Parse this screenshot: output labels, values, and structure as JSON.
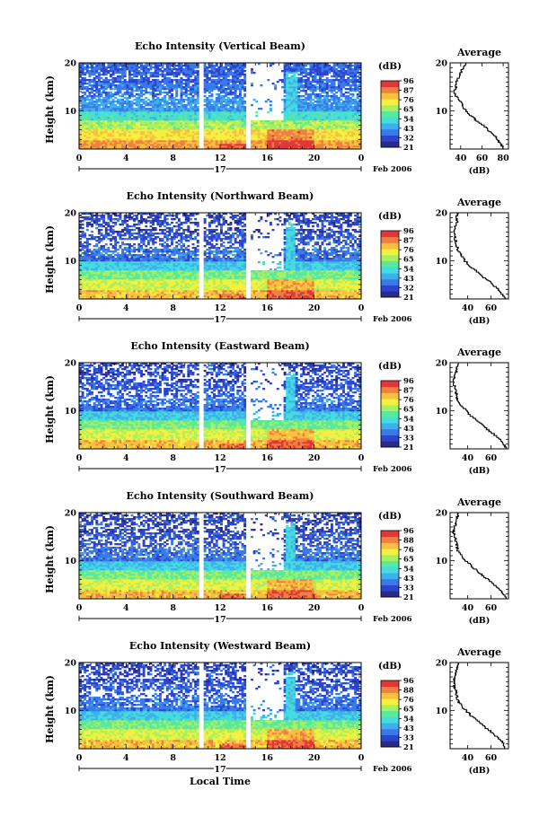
{
  "colorbar": {
    "unit": "(dB)",
    "colors": [
      "#2a2a88",
      "#2d44cc",
      "#3a7ae8",
      "#3fb0ee",
      "#44dcdc",
      "#58e8a0",
      "#a8f060",
      "#f4f040",
      "#f8c040",
      "#f08040",
      "#e03838"
    ],
    "tick_sets": [
      [
        "96",
        "87",
        "76",
        "65",
        "54",
        "43",
        "32",
        "21"
      ],
      [
        "96",
        "87",
        "76",
        "65",
        "54",
        "43",
        "32",
        "21"
      ],
      [
        "96",
        "87",
        "76",
        "65",
        "54",
        "43",
        "33",
        "21"
      ],
      [
        "96",
        "88",
        "76",
        "65",
        "54",
        "43",
        "33",
        "21"
      ],
      [
        "96",
        "88",
        "76",
        "65",
        "54",
        "43",
        "33",
        "21"
      ]
    ]
  },
  "chart_data": [
    {
      "type": "heatmap",
      "title": "Echo Intensity (Vertical Beam)",
      "ylabel": "Height (km)",
      "x_ticks": [
        "0",
        "4",
        "8",
        "12",
        "16",
        "20",
        "0"
      ],
      "x_range": [
        0,
        24
      ],
      "y_ticks": [
        "10",
        "20"
      ],
      "y_range": [
        2,
        20
      ],
      "day_label": "17",
      "date_label": "Feb 2006",
      "gaps": [
        [
          10.2,
          10.5
        ],
        [
          14.3,
          14.7
        ]
      ],
      "burst": [
        17.6,
        18.5
      ],
      "profile": {
        "title": "Average",
        "x_ticks": [
          "40",
          "60",
          "80"
        ],
        "x_range": [
          30,
          85
        ],
        "xlabel": "(dB)",
        "y_ticks": [
          "10",
          "20"
        ],
        "heights": [
          2,
          3,
          4,
          5,
          6,
          7,
          8,
          9,
          10,
          11,
          12,
          13,
          14,
          15,
          16,
          17,
          18,
          19,
          20
        ],
        "values": [
          80,
          78,
          75,
          72,
          66,
          62,
          55,
          50,
          45,
          42,
          40,
          36,
          34,
          36,
          35,
          38,
          40,
          42,
          45
        ]
      }
    },
    {
      "type": "heatmap",
      "title": "Echo Intensity (Northward Beam)",
      "ylabel": "Height (km)",
      "x_ticks": [
        "0",
        "4",
        "8",
        "12",
        "16",
        "20",
        "0"
      ],
      "x_range": [
        0,
        24
      ],
      "y_ticks": [
        "10",
        "20"
      ],
      "y_range": [
        2,
        20
      ],
      "day_label": "17",
      "date_label": "Feb 2006",
      "gaps": [
        [
          10.2,
          10.5
        ],
        [
          14.3,
          14.7
        ]
      ],
      "burst": [
        17.6,
        18.3
      ],
      "profile": {
        "title": "Average",
        "x_ticks": [
          "40",
          "60"
        ],
        "x_range": [
          25,
          75
        ],
        "xlabel": "(dB)",
        "y_ticks": [
          "10",
          "20"
        ],
        "heights": [
          2,
          3,
          4,
          5,
          6,
          7,
          8,
          9,
          10,
          11,
          12,
          13,
          14,
          15,
          16,
          17,
          18,
          19,
          20
        ],
        "values": [
          72,
          70,
          67,
          62,
          57,
          52,
          47,
          42,
          38,
          35,
          32,
          31,
          30,
          29,
          28,
          29,
          31,
          30,
          32
        ]
      }
    },
    {
      "type": "heatmap",
      "title": "Echo Intensity (Eastward Beam)",
      "ylabel": "Height (km)",
      "x_ticks": [
        "0",
        "4",
        "8",
        "12",
        "16",
        "20",
        "0"
      ],
      "x_range": [
        0,
        24
      ],
      "y_ticks": [
        "10",
        "20"
      ],
      "y_range": [
        2,
        20
      ],
      "day_label": "17",
      "date_label": "Feb 2006",
      "gaps": [
        [
          10.2,
          10.5
        ],
        [
          14.3,
          14.7
        ]
      ],
      "burst": [
        17.6,
        18.3
      ],
      "profile": {
        "title": "Average",
        "x_ticks": [
          "40",
          "60"
        ],
        "x_range": [
          25,
          75
        ],
        "xlabel": "(dB)",
        "y_ticks": [
          "10",
          "20"
        ],
        "heights": [
          2,
          3,
          4,
          5,
          6,
          7,
          8,
          9,
          10,
          11,
          12,
          13,
          14,
          15,
          16,
          17,
          18,
          19,
          20
        ],
        "values": [
          73,
          71,
          68,
          63,
          58,
          53,
          48,
          43,
          39,
          35,
          32,
          31,
          30,
          29,
          28,
          29,
          30,
          31,
          32
        ]
      }
    },
    {
      "type": "heatmap",
      "title": "Echo Intensity (Southward Beam)",
      "ylabel": "Height (km)",
      "x_ticks": [
        "0",
        "4",
        "8",
        "12",
        "16",
        "20",
        "0"
      ],
      "x_range": [
        0,
        24
      ],
      "y_ticks": [
        "10",
        "20"
      ],
      "y_range": [
        2,
        20
      ],
      "day_label": "17",
      "date_label": "Feb 2006",
      "gaps": [
        [
          10.2,
          10.5
        ],
        [
          14.3,
          14.7
        ]
      ],
      "burst": [
        17.6,
        18.3
      ],
      "profile": {
        "title": "Average",
        "x_ticks": [
          "40",
          "60"
        ],
        "x_range": [
          25,
          75
        ],
        "xlabel": "(dB)",
        "y_ticks": [
          "10",
          "20"
        ],
        "heights": [
          2,
          3,
          4,
          5,
          6,
          7,
          8,
          9,
          10,
          11,
          12,
          13,
          14,
          15,
          16,
          17,
          18,
          19,
          20
        ],
        "values": [
          73,
          71,
          68,
          63,
          58,
          53,
          48,
          43,
          39,
          35,
          32,
          31,
          30,
          29,
          28,
          29,
          30,
          31,
          32
        ]
      }
    },
    {
      "type": "heatmap",
      "title": "Echo Intensity (Westward Beam)",
      "ylabel": "Height (km)",
      "xlabel": "Local Time",
      "x_ticks": [
        "0",
        "4",
        "8",
        "12",
        "16",
        "20",
        "0"
      ],
      "x_range": [
        0,
        24
      ],
      "y_ticks": [
        "10",
        "20"
      ],
      "y_range": [
        2,
        20
      ],
      "day_label": "17",
      "date_label": "Feb 2006",
      "gaps": [
        [
          10.2,
          10.5
        ],
        [
          14.3,
          14.7
        ]
      ],
      "burst": [
        17.6,
        18.3
      ],
      "profile": {
        "title": "Average",
        "x_ticks": [
          "40",
          "60"
        ],
        "x_range": [
          25,
          75
        ],
        "xlabel": "(dB)",
        "y_ticks": [
          "10",
          "20"
        ],
        "heights": [
          2,
          3,
          4,
          5,
          6,
          7,
          8,
          9,
          10,
          11,
          12,
          13,
          14,
          15,
          16,
          17,
          18,
          19,
          20
        ],
        "values": [
          73,
          71,
          68,
          63,
          58,
          53,
          48,
          43,
          39,
          35,
          32,
          31,
          30,
          29,
          28,
          29,
          30,
          31,
          32
        ]
      }
    }
  ]
}
